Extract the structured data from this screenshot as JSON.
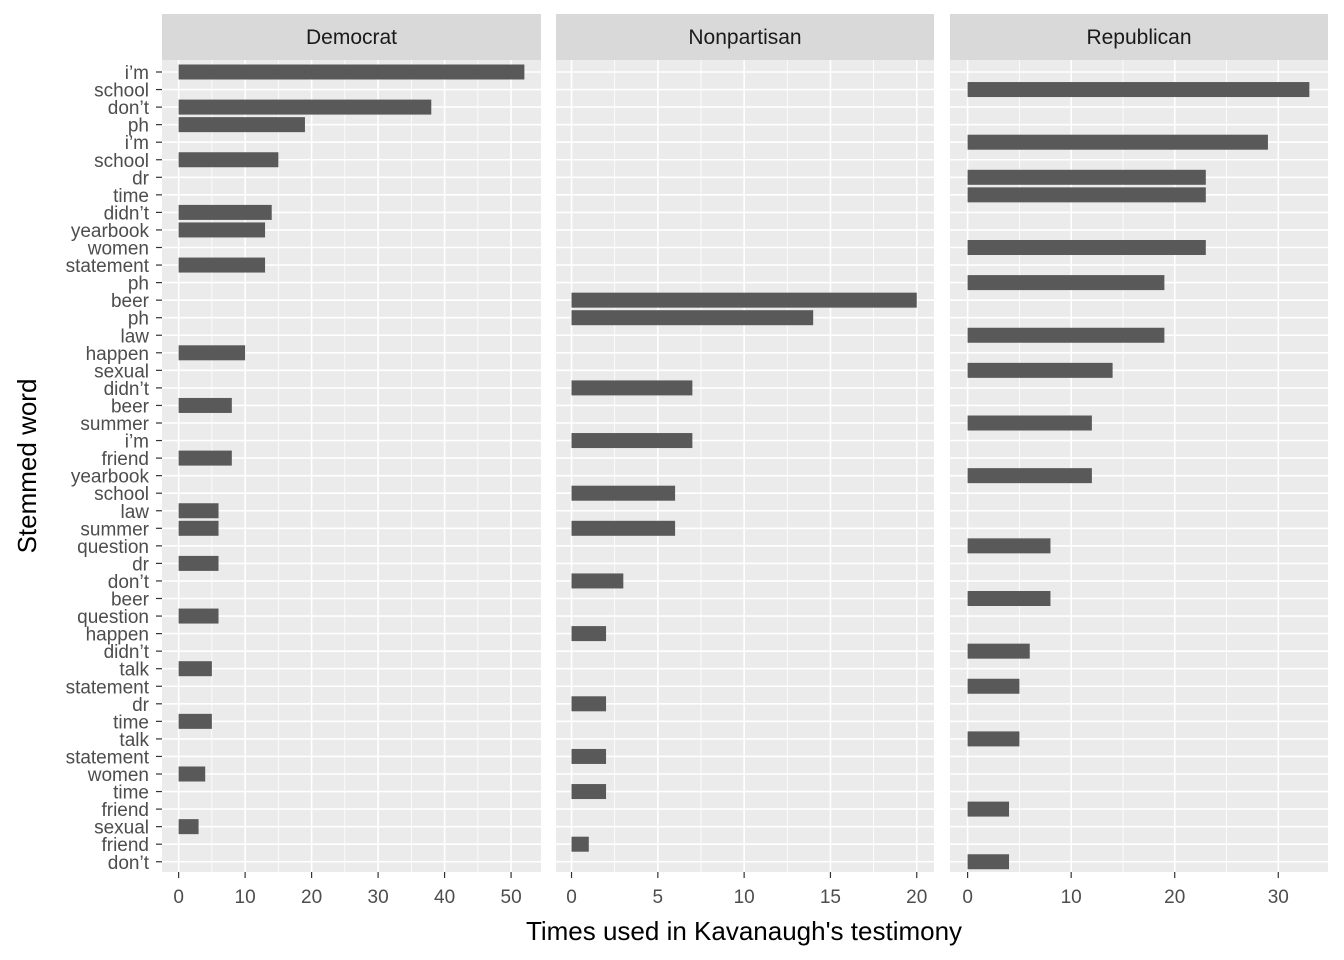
{
  "chart_data": {
    "type": "bar",
    "orientation": "horizontal",
    "xlabel": "Times used in Kavanaugh's testimony",
    "ylabel": "Stemmed word",
    "grid": true,
    "legend": "none",
    "bar_color": "#595959",
    "panel_background": "#EBEBEB",
    "strip_background": "#D9D9D9",
    "categories": [
      "i’m",
      "school",
      "don’t",
      "ph",
      "i’m",
      "school",
      "dr",
      "time",
      "didn’t",
      "yearbook",
      "women",
      "statement",
      "ph",
      "beer",
      "ph",
      "law",
      "happen",
      "sexual",
      "didn’t",
      "beer",
      "summer",
      "i’m",
      "friend",
      "yearbook",
      "school",
      "law",
      "summer",
      "question",
      "dr",
      "don’t",
      "beer",
      "question",
      "happen",
      "didn’t",
      "talk",
      "statement",
      "dr",
      "time",
      "talk",
      "statement",
      "women",
      "time",
      "friend",
      "sexual",
      "friend",
      "don’t"
    ],
    "panels": [
      {
        "name": "Democrat",
        "xlim": [
          -2.5,
          54.5
        ],
        "xticks": [
          0,
          10,
          20,
          30,
          40,
          50
        ],
        "minor_ticks": [
          5,
          15,
          25,
          35,
          45
        ],
        "values": [
          52,
          null,
          38,
          19,
          null,
          15,
          null,
          null,
          14,
          13,
          null,
          13,
          null,
          null,
          null,
          null,
          10,
          null,
          null,
          8,
          null,
          null,
          8,
          null,
          null,
          6,
          6,
          null,
          6,
          null,
          null,
          6,
          null,
          null,
          5,
          null,
          null,
          5,
          null,
          null,
          4,
          null,
          null,
          3,
          null,
          null
        ]
      },
      {
        "name": "Nonpartisan",
        "xlim": [
          -0.9,
          21.0
        ],
        "xticks": [
          0,
          5,
          10,
          15,
          20
        ],
        "minor_ticks": [
          2.5,
          7.5,
          12.5,
          17.5
        ],
        "values": [
          null,
          null,
          null,
          null,
          null,
          null,
          null,
          null,
          null,
          null,
          null,
          null,
          null,
          20,
          14,
          null,
          null,
          null,
          7,
          null,
          null,
          7,
          null,
          null,
          6,
          null,
          6,
          null,
          null,
          3,
          null,
          null,
          2,
          null,
          null,
          null,
          2,
          null,
          null,
          2,
          null,
          2,
          null,
          null,
          1,
          null
        ]
      },
      {
        "name": "Republican",
        "xlim": [
          -1.7,
          34.8
        ],
        "xticks": [
          0,
          10,
          20,
          30
        ],
        "minor_ticks": [
          5,
          15,
          25
        ],
        "values": [
          null,
          33,
          null,
          null,
          29,
          null,
          23,
          23,
          null,
          null,
          23,
          null,
          19,
          null,
          null,
          19,
          null,
          14,
          null,
          null,
          12,
          null,
          null,
          12,
          null,
          null,
          null,
          8,
          null,
          null,
          8,
          null,
          null,
          6,
          null,
          5,
          null,
          null,
          5,
          null,
          null,
          null,
          4,
          null,
          null,
          4
        ]
      }
    ]
  }
}
